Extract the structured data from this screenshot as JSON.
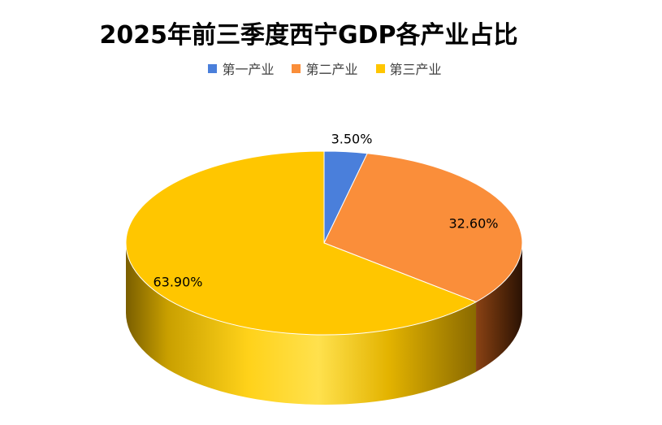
{
  "chart_data": {
    "type": "pie",
    "title": "2025年前三季度西宁GDP各产业占比",
    "legend_position": "top",
    "categories": [
      "第一产业",
      "第二产业",
      "第三产业"
    ],
    "values": [
      3.5,
      32.6,
      63.9
    ],
    "value_labels": [
      "3.50%",
      "32.60%",
      "63.90%"
    ],
    "colors": [
      "#4a7fdb",
      "#fa8e3a",
      "#ffc600"
    ]
  }
}
